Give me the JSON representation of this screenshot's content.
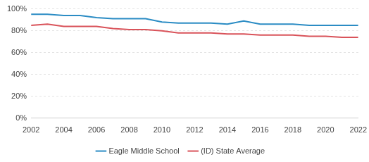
{
  "chart_data": {
    "type": "line",
    "x": [
      2002,
      2003,
      2004,
      2005,
      2006,
      2007,
      2008,
      2009,
      2010,
      2011,
      2012,
      2013,
      2014,
      2015,
      2016,
      2017,
      2018,
      2019,
      2020,
      2021,
      2022
    ],
    "series": [
      {
        "name": "Eagle Middle School",
        "color": "#2b8cc4",
        "values": [
          95,
          95,
          94,
          94,
          92,
          91,
          91,
          91,
          88,
          87,
          87,
          87,
          86,
          89,
          86,
          86,
          86,
          85,
          85,
          85,
          85
        ]
      },
      {
        "name": "(ID) State Average",
        "color": "#d9535a",
        "values": [
          85,
          86,
          84,
          84,
          84,
          82,
          81,
          81,
          80,
          78,
          78,
          78,
          77,
          77,
          76,
          76,
          76,
          75,
          75,
          74,
          74
        ]
      }
    ],
    "xlim": [
      2002,
      2022
    ],
    "xticks": [
      2002,
      2004,
      2006,
      2008,
      2010,
      2012,
      2014,
      2016,
      2018,
      2020,
      2022
    ],
    "ylim": [
      0,
      100
    ],
    "yticks": [
      {
        "value": 0,
        "label": "0%"
      },
      {
        "value": 20,
        "label": "20%"
      },
      {
        "value": 40,
        "label": "40%"
      },
      {
        "value": 60,
        "label": "60%"
      },
      {
        "value": 80,
        "label": "80%"
      },
      {
        "value": 100,
        "label": "100%"
      }
    ],
    "grid": true,
    "legend": "bottom"
  }
}
